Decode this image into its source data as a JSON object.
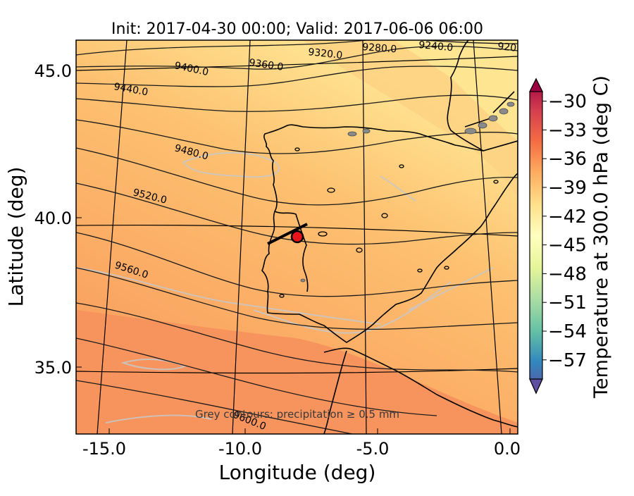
{
  "title": "Init: 2017-04-30 00:00; Valid: 2017-06-06 06:00",
  "xlabel": "Longitude (deg)",
  "ylabel": "Latitude (deg)",
  "annotation": "Grey contours: precipitation ≥ 0.5 mm",
  "chart_data": {
    "type": "heatmap",
    "xlim": [
      -16.0,
      0.3
    ],
    "ylim": [
      32.8,
      46.0
    ],
    "xticks": [
      "-15.0",
      "-10.0",
      "-5.0",
      "0.0"
    ],
    "xtick_values": [
      -15.0,
      -10.0,
      -5.0,
      0.0
    ],
    "yticks": [
      "35.0",
      "40.0",
      "45.0"
    ],
    "ytick_values": [
      35.0,
      40.0,
      45.0
    ],
    "field": "Temperature at 300.0 hPa",
    "contour_variable": "geopotential height",
    "contour_labels": [
      "9240.0",
      "9280.0",
      "9320.0",
      "9360.0",
      "9400.0",
      "9440.0",
      "9480.0",
      "9520.0",
      "9560.0",
      "9600.0",
      "920"
    ],
    "marker": {
      "lon": -7.7,
      "lat": 39.3,
      "color": "#e8141c"
    },
    "colors": {
      "warm": "#f7935c",
      "mid": "#fcb469",
      "cool": "#fee592",
      "coast": "#000000",
      "precip": "#bdbdbd"
    }
  },
  "colorbar": {
    "label": "Temperature at 300.0 hPa (deg C)",
    "ticks": [
      "−30",
      "−33",
      "−36",
      "−39",
      "−42",
      "−45",
      "−48",
      "−51",
      "−54",
      "−57"
    ],
    "tick_values": [
      -30,
      -33,
      -36,
      -39,
      -42,
      -45,
      -48,
      -51,
      -54,
      -57
    ],
    "range": [
      -59,
      -29
    ],
    "colormap": [
      "#5e4fa2",
      "#3288bd",
      "#66c2a5",
      "#abdda4",
      "#e6f598",
      "#ffffbf",
      "#fee08b",
      "#fdae61",
      "#f46d43",
      "#d53e4f",
      "#9e0142"
    ]
  }
}
